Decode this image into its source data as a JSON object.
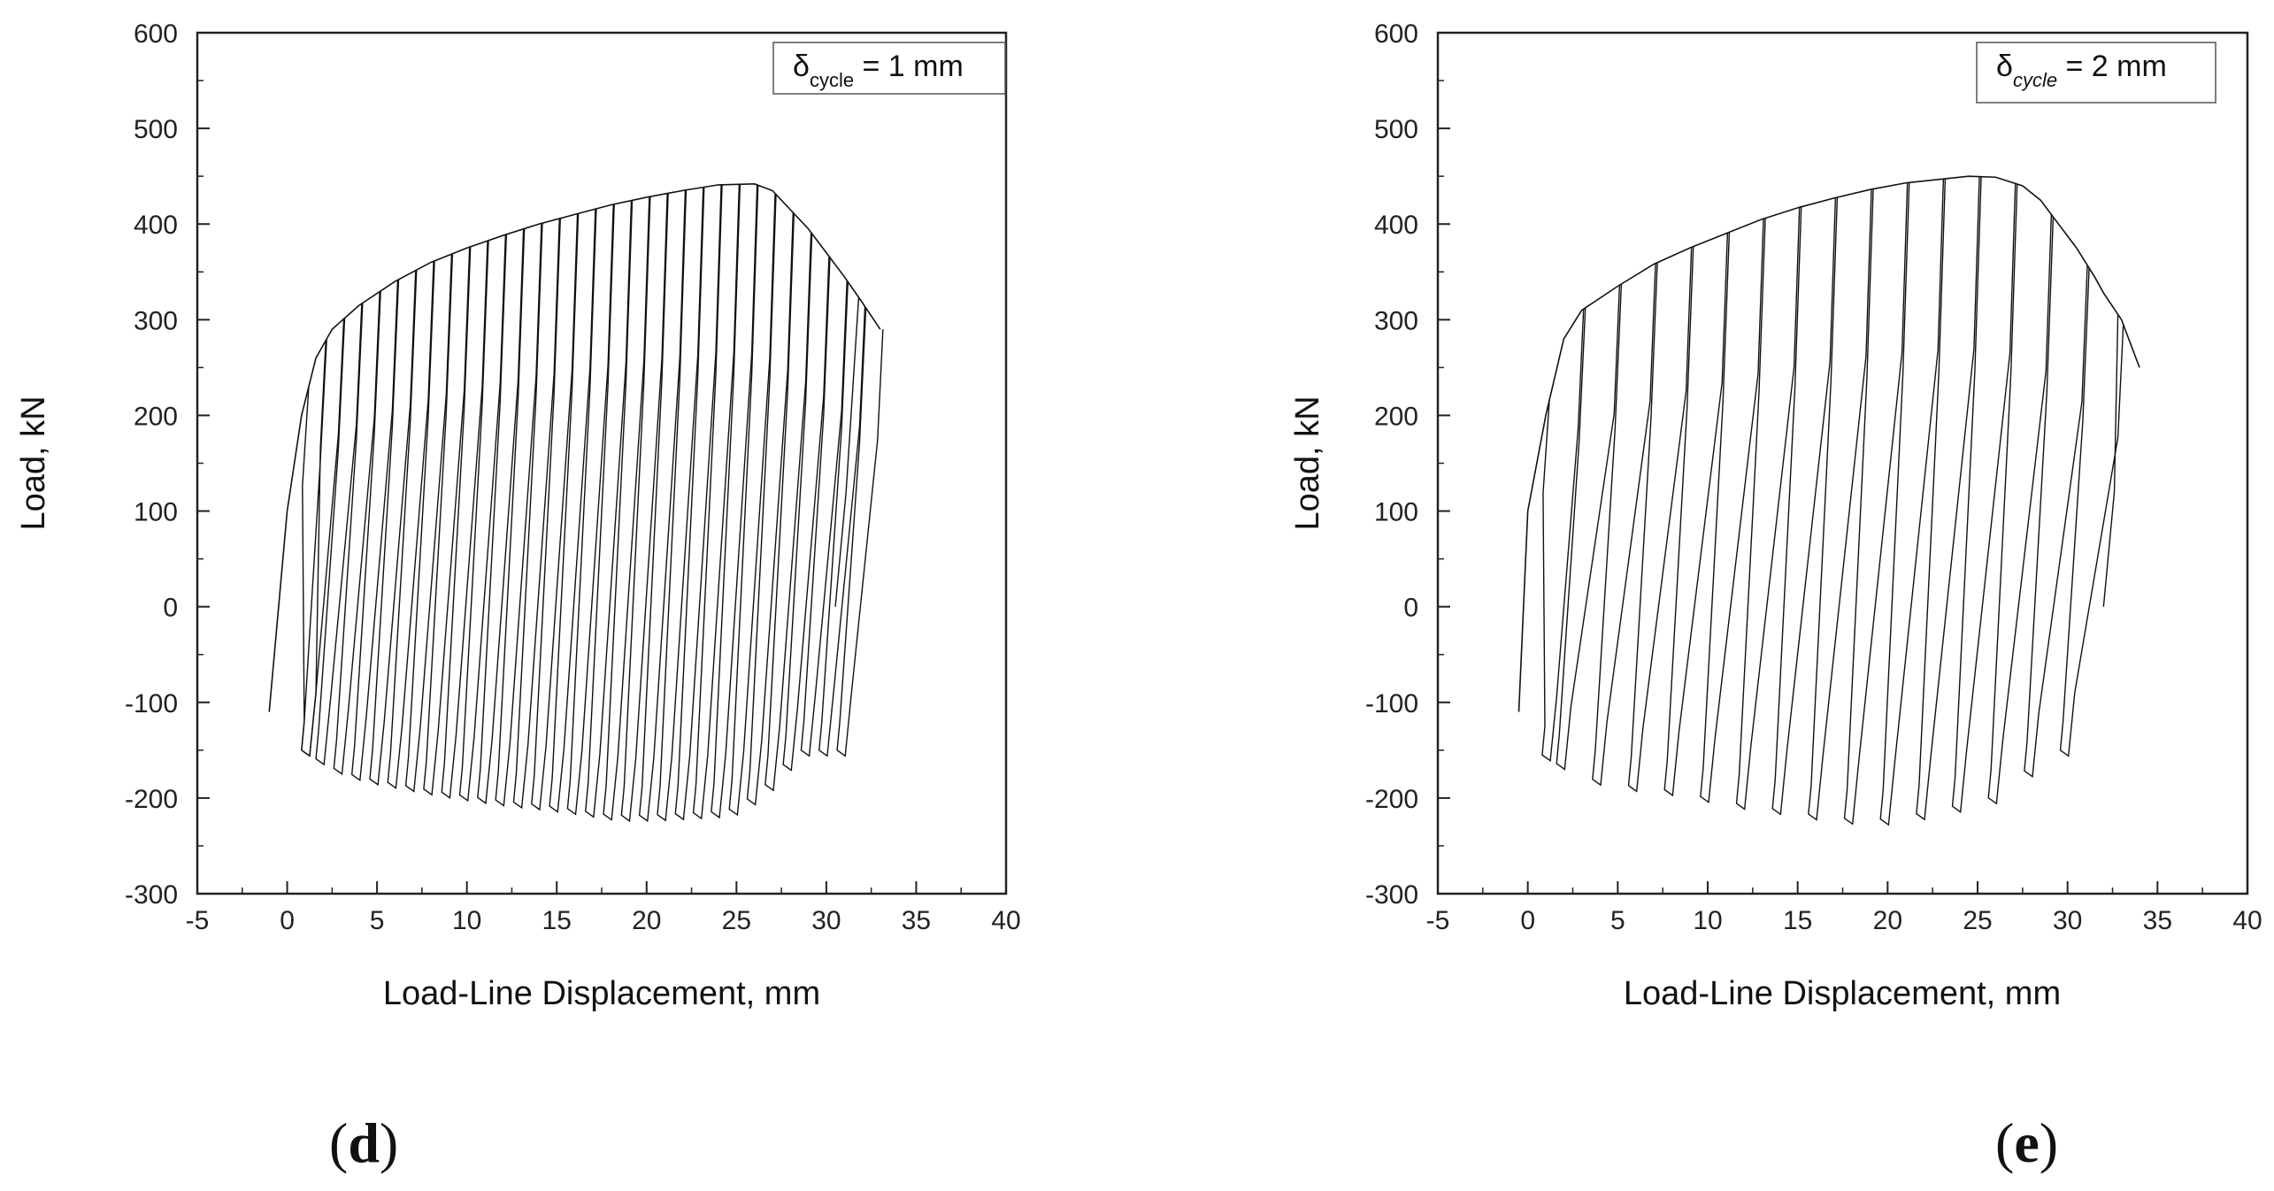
{
  "chart_data": [
    {
      "type": "line",
      "panel_label": "d",
      "legend_text": {
        "symbol": "δ",
        "subscript": "cycle",
        "suffix": " = 1 mm",
        "italic_subscript": false
      },
      "xlabel": "Load-Line Displacement, mm",
      "ylabel": "Load, kN",
      "xlim": [
        -5,
        40
      ],
      "ylim": [
        -300,
        600
      ],
      "xticks": [
        -5,
        0,
        5,
        10,
        15,
        20,
        25,
        30,
        35,
        40
      ],
      "yticks": [
        -300,
        -200,
        -100,
        0,
        100,
        200,
        300,
        400,
        500,
        600
      ],
      "legend_position": "top-right",
      "grid": false,
      "cycle_step_mm": 1,
      "envelope_top": [
        [
          0,
          100
        ],
        [
          0.8,
          200
        ],
        [
          1.6,
          260
        ],
        [
          2.5,
          290
        ],
        [
          4,
          315
        ],
        [
          6,
          340
        ],
        [
          8,
          360
        ],
        [
          10,
          375
        ],
        [
          12,
          388
        ],
        [
          14,
          400
        ],
        [
          16,
          410
        ],
        [
          18,
          420
        ],
        [
          20,
          428
        ],
        [
          22,
          435
        ],
        [
          24,
          441
        ],
        [
          26,
          442
        ],
        [
          27,
          435
        ],
        [
          28,
          415
        ],
        [
          29,
          395
        ],
        [
          30,
          370
        ],
        [
          31,
          345
        ],
        [
          32,
          318
        ],
        [
          33,
          290
        ]
      ],
      "envelope_bottom": [
        [
          1,
          -150
        ],
        [
          2,
          -165
        ],
        [
          4,
          -178
        ],
        [
          6,
          -185
        ],
        [
          8,
          -192
        ],
        [
          10,
          -198
        ],
        [
          12,
          -203
        ],
        [
          14,
          -207
        ],
        [
          16,
          -212
        ],
        [
          18,
          -218
        ],
        [
          20,
          -218
        ],
        [
          22,
          -216
        ],
        [
          24,
          -214
        ],
        [
          25,
          -210
        ],
        [
          26,
          -195
        ],
        [
          27,
          -180
        ],
        [
          28,
          -155
        ]
      ],
      "start_point": [
        -1,
        -110
      ],
      "end_point": [
        30.5,
        0
      ]
    },
    {
      "type": "line",
      "panel_label": "e",
      "legend_text": {
        "symbol": "δ",
        "subscript": "cycle",
        "suffix": " = 2 mm",
        "italic_subscript": true
      },
      "xlabel": "Load-Line Displacement, mm",
      "ylabel": "Load, kN",
      "xlim": [
        -5,
        40
      ],
      "ylim": [
        -300,
        600
      ],
      "xticks": [
        -5,
        0,
        5,
        10,
        15,
        20,
        25,
        30,
        35,
        40
      ],
      "yticks": [
        -300,
        -200,
        -100,
        0,
        100,
        200,
        300,
        400,
        500,
        600
      ],
      "legend_position": "top-right",
      "grid": false,
      "cycle_step_mm": 2,
      "envelope_top": [
        [
          0,
          100
        ],
        [
          1,
          200
        ],
        [
          2,
          280
        ],
        [
          3,
          310
        ],
        [
          5,
          335
        ],
        [
          7,
          358
        ],
        [
          9,
          375
        ],
        [
          11,
          390
        ],
        [
          13,
          405
        ],
        [
          15,
          417
        ],
        [
          17,
          427
        ],
        [
          19,
          436
        ],
        [
          21,
          443
        ],
        [
          23,
          447
        ],
        [
          24.5,
          450
        ],
        [
          26,
          449
        ],
        [
          27.5,
          440
        ],
        [
          28.5,
          425
        ],
        [
          29.5,
          400
        ],
        [
          30.5,
          375
        ],
        [
          31.5,
          345
        ],
        [
          32,
          328
        ],
        [
          33,
          300
        ],
        [
          34,
          250
        ]
      ],
      "envelope_bottom": [
        [
          1,
          -155
        ],
        [
          2,
          -170
        ],
        [
          4,
          -183
        ],
        [
          6,
          -188
        ],
        [
          8,
          -192
        ],
        [
          10,
          -200
        ],
        [
          12,
          -207
        ],
        [
          14,
          -212
        ],
        [
          16,
          -218
        ],
        [
          18,
          -222
        ],
        [
          20,
          -222
        ],
        [
          22,
          -215
        ],
        [
          24,
          -207
        ],
        [
          26,
          -198
        ],
        [
          28,
          -165
        ]
      ],
      "start_point": [
        -0.5,
        -110
      ],
      "end_point": [
        32,
        0
      ]
    }
  ]
}
